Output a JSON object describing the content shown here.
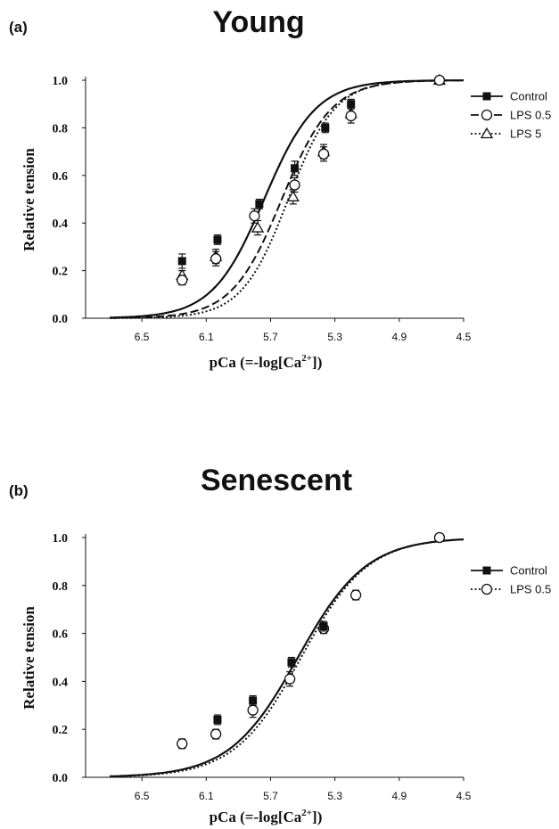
{
  "chart_data": [
    {
      "type": "line",
      "panel_label": "(a)",
      "title": "Young",
      "xlabel": "pCa (=-log[Ca",
      "xlabel_sup": "2+",
      "xlabel_end": "])",
      "ylabel": "Relative tension",
      "x_reversed": true,
      "xlim": [
        6.85,
        4.5
      ],
      "ylim": [
        0.0,
        1.0
      ],
      "xticks": [
        6.5,
        6.1,
        5.7,
        5.3,
        4.9,
        4.5
      ],
      "xtick_labels": [
        "6.5",
        "6.1",
        "5.7",
        "5.3",
        "4.9",
        "4.5"
      ],
      "yticks": [
        0.0,
        0.2,
        0.4,
        0.6,
        0.8,
        1.0
      ],
      "ytick_labels": [
        "0.0",
        "0.2",
        "0.4",
        "0.6",
        "0.8",
        "1.0"
      ],
      "legend_position": "right",
      "series": [
        {
          "name": "Control",
          "marker": "square",
          "line": "solid",
          "x": [
            6.03,
            5.77,
            5.55,
            5.36,
            5.2
          ],
          "y": [
            0.33,
            0.48,
            0.63,
            0.8,
            0.9
          ],
          "err": [
            0.02,
            0.02,
            0.03,
            0.02,
            0.02
          ],
          "curve": {
            "pca50": 5.74,
            "hill": 2.7
          }
        },
        {
          "name": "LPS 0.5",
          "marker": "circle",
          "line": "dashed",
          "x": [
            6.25,
            6.04,
            5.8,
            5.55,
            5.37,
            5.2,
            4.65
          ],
          "y": [
            0.16,
            0.25,
            0.43,
            0.56,
            0.69,
            0.85,
            1.0
          ],
          "err": [
            0.02,
            0.03,
            0.03,
            0.03,
            0.03,
            0.03,
            0.0
          ],
          "curve": {
            "pca50": 5.63,
            "hill": 2.8
          }
        },
        {
          "name": "LPS 5",
          "marker": "triangle",
          "line": "dotted",
          "x": [
            6.25,
            6.04,
            5.78,
            5.56,
            5.37,
            5.2,
            4.65
          ],
          "y": [
            0.18,
            0.26,
            0.38,
            0.51,
            0.7,
            0.86,
            1.0
          ],
          "err": [
            0.02,
            0.03,
            0.03,
            0.03,
            0.03,
            0.02,
            0.0
          ],
          "curve": {
            "pca50": 5.59,
            "hill": 3.0
          }
        }
      ],
      "extra_points": [
        {
          "series": 0,
          "x": 6.25,
          "y": 0.24,
          "err": 0.03
        }
      ]
    },
    {
      "type": "line",
      "panel_label": "(b)",
      "title": "Senescent",
      "xlabel": "pCa (=-log[Ca",
      "xlabel_sup": "2+",
      "xlabel_end": "])",
      "ylabel": "Relative tension",
      "x_reversed": true,
      "xlim": [
        6.85,
        4.5
      ],
      "ylim": [
        0.0,
        1.0
      ],
      "xticks": [
        6.5,
        6.1,
        5.7,
        5.3,
        4.9,
        4.5
      ],
      "xtick_labels": [
        "6.5",
        "6.1",
        "5.7",
        "5.3",
        "4.9",
        "4.5"
      ],
      "yticks": [
        0.0,
        0.2,
        0.4,
        0.6,
        0.8,
        1.0
      ],
      "ytick_labels": [
        "0.0",
        "0.2",
        "0.4",
        "0.6",
        "0.8",
        "1.0"
      ],
      "legend_position": "right",
      "series": [
        {
          "name": "Control",
          "marker": "square",
          "line": "solid",
          "x": [
            6.03,
            5.81,
            5.57,
            5.37
          ],
          "y": [
            0.24,
            0.32,
            0.48,
            0.63
          ],
          "err": [
            0.02,
            0.02,
            0.02,
            0.02
          ],
          "curve": {
            "pca50": 5.53,
            "hill": 2.05
          }
        },
        {
          "name": "LPS 0.5",
          "marker": "circle",
          "line": "dotted",
          "x": [
            6.25,
            6.04,
            5.81,
            5.58,
            5.37,
            5.17,
            4.65
          ],
          "y": [
            0.14,
            0.18,
            0.28,
            0.41,
            0.62,
            0.76,
            1.0
          ],
          "err": [
            0.02,
            0.02,
            0.03,
            0.03,
            0.02,
            0.02,
            0.0
          ],
          "curve": {
            "pca50": 5.51,
            "hill": 2.1
          }
        }
      ]
    }
  ]
}
